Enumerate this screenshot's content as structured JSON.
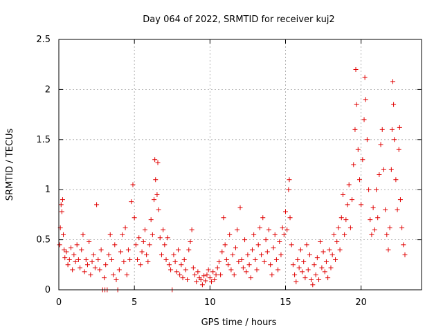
{
  "chart_data": {
    "type": "scatter",
    "title": "Day 064 of 2022, SRMTID for receiver kuj2",
    "xlabel": "GPS time / hours",
    "ylabel": "SRMTID / TECUs",
    "xlim": [
      0,
      24
    ],
    "ylim": [
      0,
      2.5
    ],
    "xticks": [
      0,
      5,
      10,
      15,
      20
    ],
    "yticks": [
      0,
      0.5,
      1,
      1.5,
      2,
      2.5
    ],
    "xtick_labels": [
      "0",
      "5",
      "10",
      "15",
      "20"
    ],
    "ytick_labels": [
      "0",
      "0.5",
      "1",
      "1.5",
      "2",
      "2.5"
    ],
    "grid": true,
    "marker": "plus",
    "color": "#e00000",
    "series": [
      {
        "name": "SRMTID",
        "points": [
          [
            0.05,
            0.45
          ],
          [
            0.1,
            0.62
          ],
          [
            0.15,
            0.85
          ],
          [
            0.2,
            0.78
          ],
          [
            0.25,
            0.9
          ],
          [
            0.3,
            0.55
          ],
          [
            0.35,
            0.4
          ],
          [
            0.4,
            0.32
          ],
          [
            0.5,
            0.38
          ],
          [
            0.6,
            0.25
          ],
          [
            0.7,
            0.3
          ],
          [
            0.8,
            0.42
          ],
          [
            0.9,
            0.2
          ],
          [
            1.0,
            0.35
          ],
          [
            1.1,
            0.28
          ],
          [
            1.2,
            0.45
          ],
          [
            1.3,
            0.3
          ],
          [
            1.4,
            0.22
          ],
          [
            1.5,
            0.4
          ],
          [
            1.6,
            0.55
          ],
          [
            1.7,
            0.18
          ],
          [
            1.8,
            0.3
          ],
          [
            1.9,
            0.25
          ],
          [
            2.0,
            0.48
          ],
          [
            2.1,
            0.15
          ],
          [
            2.2,
            0.28
          ],
          [
            2.3,
            0.35
          ],
          [
            2.4,
            0.22
          ],
          [
            2.5,
            0.85
          ],
          [
            2.6,
            0.3
          ],
          [
            2.7,
            0.2
          ],
          [
            2.8,
            0.4
          ],
          [
            2.9,
            0.0
          ],
          [
            3.0,
            0.12
          ],
          [
            3.05,
            0.0
          ],
          [
            3.1,
            0.25
          ],
          [
            3.2,
            0.0
          ],
          [
            3.3,
            0.35
          ],
          [
            3.4,
            0.55
          ],
          [
            3.5,
            0.3
          ],
          [
            3.6,
            0.15
          ],
          [
            3.7,
            0.45
          ],
          [
            3.8,
            0.1
          ],
          [
            3.9,
            0.0
          ],
          [
            4.0,
            0.2
          ],
          [
            4.1,
            0.38
          ],
          [
            4.2,
            0.55
          ],
          [
            4.3,
            0.28
          ],
          [
            4.4,
            0.62
          ],
          [
            4.5,
            0.15
          ],
          [
            4.6,
            0.4
          ],
          [
            4.7,
            0.3
          ],
          [
            4.8,
            0.88
          ],
          [
            4.9,
            1.05
          ],
          [
            5.0,
            0.72
          ],
          [
            5.1,
            0.45
          ],
          [
            5.2,
            0.3
          ],
          [
            5.3,
            0.52
          ],
          [
            5.4,
            0.25
          ],
          [
            5.5,
            0.38
          ],
          [
            5.6,
            0.48
          ],
          [
            5.7,
            0.6
          ],
          [
            5.8,
            0.35
          ],
          [
            5.9,
            0.28
          ],
          [
            6.0,
            0.45
          ],
          [
            6.1,
            0.7
          ],
          [
            6.2,
            0.55
          ],
          [
            6.3,
            0.9
          ],
          [
            6.35,
            1.3
          ],
          [
            6.4,
            1.1
          ],
          [
            6.5,
            0.95
          ],
          [
            6.55,
            1.27
          ],
          [
            6.6,
            0.8
          ],
          [
            6.7,
            0.52
          ],
          [
            6.8,
            0.35
          ],
          [
            6.9,
            0.6
          ],
          [
            7.0,
            0.45
          ],
          [
            7.1,
            0.3
          ],
          [
            7.2,
            0.52
          ],
          [
            7.3,
            0.25
          ],
          [
            7.4,
            0.2
          ],
          [
            7.5,
            0.0
          ],
          [
            7.6,
            0.35
          ],
          [
            7.7,
            0.28
          ],
          [
            7.8,
            0.18
          ],
          [
            7.9,
            0.4
          ],
          [
            8.0,
            0.15
          ],
          [
            8.1,
            0.25
          ],
          [
            8.2,
            0.12
          ],
          [
            8.3,
            0.3
          ],
          [
            8.4,
            0.2
          ],
          [
            8.5,
            0.1
          ],
          [
            8.6,
            0.4
          ],
          [
            8.7,
            0.48
          ],
          [
            8.8,
            0.6
          ],
          [
            8.9,
            0.22
          ],
          [
            9.0,
            0.15
          ],
          [
            9.1,
            0.08
          ],
          [
            9.2,
            0.18
          ],
          [
            9.3,
            0.12
          ],
          [
            9.4,
            0.1
          ],
          [
            9.5,
            0.05
          ],
          [
            9.6,
            0.14
          ],
          [
            9.7,
            0.09
          ],
          [
            9.8,
            0.15
          ],
          [
            9.9,
            0.2
          ],
          [
            10.0,
            0.12
          ],
          [
            10.1,
            0.08
          ],
          [
            10.2,
            0.18
          ],
          [
            10.3,
            0.1
          ],
          [
            10.4,
            0.15
          ],
          [
            10.5,
            0.22
          ],
          [
            10.6,
            0.28
          ],
          [
            10.7,
            0.15
          ],
          [
            10.8,
            0.38
          ],
          [
            10.9,
            0.72
          ],
          [
            11.0,
            0.45
          ],
          [
            11.1,
            0.3
          ],
          [
            11.2,
            0.25
          ],
          [
            11.3,
            0.55
          ],
          [
            11.4,
            0.2
          ],
          [
            11.5,
            0.35
          ],
          [
            11.6,
            0.15
          ],
          [
            11.7,
            0.42
          ],
          [
            11.8,
            0.6
          ],
          [
            11.9,
            0.28
          ],
          [
            12.0,
            0.82
          ],
          [
            12.1,
            0.3
          ],
          [
            12.2,
            0.22
          ],
          [
            12.3,
            0.5
          ],
          [
            12.4,
            0.18
          ],
          [
            12.5,
            0.35
          ],
          [
            12.6,
            0.25
          ],
          [
            12.7,
            0.12
          ],
          [
            12.8,
            0.4
          ],
          [
            12.9,
            0.55
          ],
          [
            13.0,
            0.3
          ],
          [
            13.1,
            0.2
          ],
          [
            13.2,
            0.45
          ],
          [
            13.3,
            0.62
          ],
          [
            13.4,
            0.35
          ],
          [
            13.5,
            0.72
          ],
          [
            13.6,
            0.28
          ],
          [
            13.7,
            0.5
          ],
          [
            13.8,
            0.38
          ],
          [
            13.9,
            0.6
          ],
          [
            14.0,
            0.25
          ],
          [
            14.1,
            0.15
          ],
          [
            14.2,
            0.42
          ],
          [
            14.3,
            0.55
          ],
          [
            14.4,
            0.3
          ],
          [
            14.5,
            0.2
          ],
          [
            14.6,
            0.48
          ],
          [
            14.7,
            0.35
          ],
          [
            14.8,
            0.62
          ],
          [
            14.9,
            0.55
          ],
          [
            15.0,
            0.78
          ],
          [
            15.1,
            0.6
          ],
          [
            15.2,
            1.0
          ],
          [
            15.25,
            1.1
          ],
          [
            15.3,
            0.72
          ],
          [
            15.4,
            0.45
          ],
          [
            15.5,
            0.25
          ],
          [
            15.6,
            0.15
          ],
          [
            15.7,
            0.08
          ],
          [
            15.8,
            0.3
          ],
          [
            15.9,
            0.22
          ],
          [
            16.0,
            0.4
          ],
          [
            16.1,
            0.18
          ],
          [
            16.2,
            0.28
          ],
          [
            16.3,
            0.12
          ],
          [
            16.4,
            0.45
          ],
          [
            16.5,
            0.2
          ],
          [
            16.6,
            0.35
          ],
          [
            16.7,
            0.1
          ],
          [
            16.8,
            0.05
          ],
          [
            16.9,
            0.25
          ],
          [
            17.0,
            0.15
          ],
          [
            17.1,
            0.32
          ],
          [
            17.2,
            0.1
          ],
          [
            17.3,
            0.48
          ],
          [
            17.4,
            0.22
          ],
          [
            17.5,
            0.38
          ],
          [
            17.6,
            0.18
          ],
          [
            17.7,
            0.28
          ],
          [
            17.8,
            0.12
          ],
          [
            17.9,
            0.4
          ],
          [
            18.0,
            0.22
          ],
          [
            18.1,
            0.35
          ],
          [
            18.2,
            0.55
          ],
          [
            18.3,
            0.3
          ],
          [
            18.4,
            0.48
          ],
          [
            18.5,
            0.62
          ],
          [
            18.6,
            0.4
          ],
          [
            18.7,
            0.72
          ],
          [
            18.8,
            0.95
          ],
          [
            18.9,
            0.55
          ],
          [
            19.0,
            0.7
          ],
          [
            19.1,
            0.85
          ],
          [
            19.2,
            1.05
          ],
          [
            19.3,
            0.62
          ],
          [
            19.4,
            0.9
          ],
          [
            19.5,
            1.25
          ],
          [
            19.6,
            1.6
          ],
          [
            19.65,
            2.2
          ],
          [
            19.7,
            1.85
          ],
          [
            19.8,
            1.4
          ],
          [
            19.9,
            1.1
          ],
          [
            20.0,
            0.85
          ],
          [
            20.1,
            1.3
          ],
          [
            20.2,
            1.7
          ],
          [
            20.25,
            2.12
          ],
          [
            20.3,
            1.9
          ],
          [
            20.4,
            1.5
          ],
          [
            20.5,
            1.0
          ],
          [
            20.6,
            0.7
          ],
          [
            20.7,
            0.55
          ],
          [
            20.8,
            0.82
          ],
          [
            20.9,
            0.6
          ],
          [
            21.0,
            1.0
          ],
          [
            21.1,
            0.72
          ],
          [
            21.2,
            1.15
          ],
          [
            21.3,
            1.45
          ],
          [
            21.4,
            1.6
          ],
          [
            21.5,
            1.2
          ],
          [
            21.6,
            0.8
          ],
          [
            21.7,
            0.55
          ],
          [
            21.8,
            0.4
          ],
          [
            21.9,
            0.62
          ],
          [
            22.0,
            1.2
          ],
          [
            22.05,
            1.6
          ],
          [
            22.1,
            2.08
          ],
          [
            22.15,
            1.85
          ],
          [
            22.2,
            1.5
          ],
          [
            22.3,
            1.1
          ],
          [
            22.4,
            0.8
          ],
          [
            22.5,
            1.4
          ],
          [
            22.55,
            1.62
          ],
          [
            22.6,
            0.9
          ],
          [
            22.7,
            0.62
          ],
          [
            22.8,
            0.45
          ],
          [
            22.9,
            0.35
          ]
        ]
      }
    ]
  }
}
